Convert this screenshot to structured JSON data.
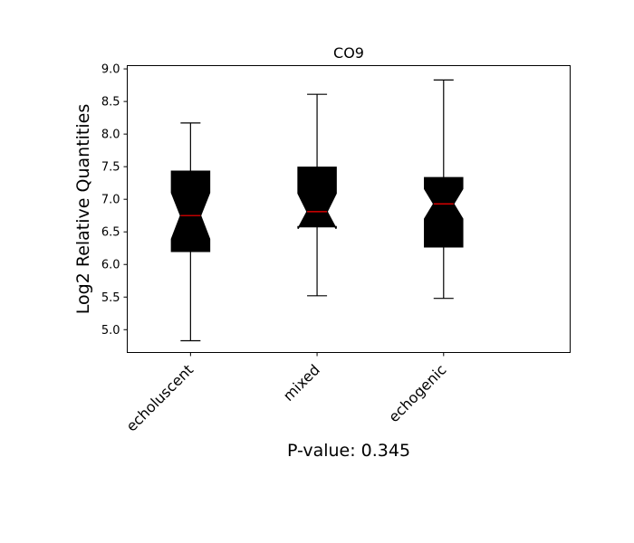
{
  "chart_data": {
    "type": "boxplot",
    "title": "CO9",
    "ylabel": "Log2 Relative Quantities",
    "xlabel": "P-value: 0.345",
    "ylim": [
      4.65,
      9.05
    ],
    "yticks": [
      "5.0",
      "5.5",
      "6.0",
      "6.5",
      "7.0",
      "7.5",
      "8.0",
      "8.5",
      "9.0"
    ],
    "xlim": [
      0.5,
      4.0
    ],
    "notched": true,
    "colors": {
      "box_fill": "#000000",
      "median_line": "#ff0000",
      "axes": "#000000"
    },
    "categories": [
      "echoluscent",
      "mixed",
      "echogenic"
    ],
    "boxes": [
      {
        "label": "echoluscent",
        "whisker_low": 4.83,
        "q1": 6.2,
        "notch_low": 6.39,
        "median": 6.75,
        "notch_high": 7.1,
        "q3": 7.43,
        "whisker_high": 8.17
      },
      {
        "label": "mixed",
        "whisker_low": 5.52,
        "q1": 6.58,
        "notch_low": 6.55,
        "median": 6.81,
        "notch_high": 7.09,
        "q3": 7.49,
        "whisker_high": 8.61
      },
      {
        "label": "echogenic",
        "whisker_low": 5.48,
        "q1": 6.27,
        "notch_low": 6.7,
        "median": 6.93,
        "notch_high": 7.16,
        "q3": 7.33,
        "whisker_high": 8.83
      }
    ]
  }
}
